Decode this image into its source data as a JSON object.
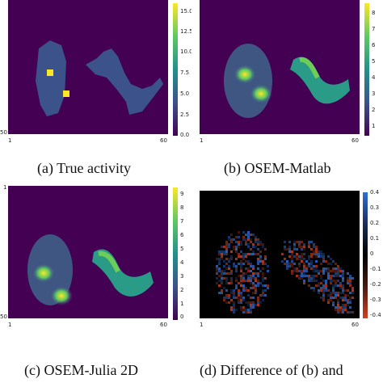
{
  "panels": [
    {
      "caption": "(a) True activity",
      "axis_ticks": {
        "top_left": "",
        "bottom_left": "50",
        "bottom_x_left": "1",
        "bottom_x_right": "60"
      },
      "colorbar": {
        "labels": [
          "15.0",
          "12.5",
          "10.0",
          "7.5",
          "5.0",
          "2.5",
          "0.0"
        ],
        "colormap": "viridis"
      }
    },
    {
      "caption": "(b) OSEM-Matlab",
      "axis_ticks": {
        "top_left": "",
        "bottom_left": "",
        "bottom_x_left": "1",
        "bottom_x_right": "60"
      },
      "colorbar": {
        "labels": [
          "8",
          "7",
          "6",
          "5",
          "4",
          "3",
          "2",
          "1"
        ],
        "colormap": "viridis"
      }
    },
    {
      "caption": "(c) OSEM-Julia 2D",
      "axis_ticks": {
        "top_left": "1",
        "bottom_left": "50",
        "bottom_x_left": "1",
        "bottom_x_right": "60"
      },
      "colorbar": {
        "labels": [
          "9",
          "8",
          "7",
          "6",
          "5",
          "4",
          "3",
          "2",
          "1",
          "0"
        ],
        "colormap": "viridis"
      }
    },
    {
      "caption": "(d) Difference of (b) and",
      "axis_ticks": {
        "top_left": "",
        "bottom_left": "",
        "bottom_x_left": "1",
        "bottom_x_right": "60"
      },
      "colorbar": {
        "labels": [
          "0.4",
          "0.3",
          "0.2",
          "0.1",
          "0",
          "-0.1",
          "-0.2",
          "-0.3",
          "-0.4"
        ],
        "colormap": "diverging-blue-black-red"
      }
    }
  ],
  "colors": {
    "viridis_low": "#440154",
    "viridis_mid": "#21918c",
    "viridis_high": "#fde725",
    "diff_positive": "#2f6fd6",
    "diff_zero": "#000000",
    "diff_negative": "#d04020"
  }
}
